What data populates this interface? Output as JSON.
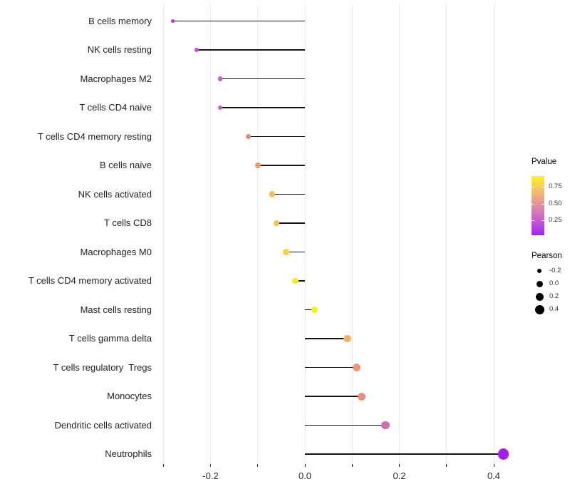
{
  "chart_data": {
    "type": "lollipop",
    "orientation": "horizontal",
    "title": "",
    "xlabel": "",
    "ylabel": "",
    "categories": [
      "B cells memory",
      "NK cells resting",
      "Macrophages M2",
      "T cells CD4 naive",
      "T cells CD4 memory resting",
      "B cells naive",
      "NK cells activated",
      "T cells CD8",
      "Macrophages M0",
      "T cells CD4 memory activated",
      "Mast cells resting",
      "T cells gamma delta",
      "T cells regulatory  Tregs",
      "Monocytes",
      "Dendritic cells activated",
      "Neutrophils"
    ],
    "values": [
      -0.28,
      -0.23,
      -0.18,
      -0.18,
      -0.12,
      -0.1,
      -0.07,
      -0.06,
      -0.04,
      -0.02,
      0.02,
      0.09,
      0.11,
      0.12,
      0.17,
      0.42
    ],
    "point_colors": [
      "#AE3BD1",
      "#BD4FCE",
      "#C75FC4",
      "#C75FC4",
      "#DB8A80",
      "#E69B6E",
      "#EEC156",
      "#EEC351",
      "#F2D841",
      "#F4E930",
      "#F6EF1D",
      "#ECB26C",
      "#E79B78",
      "#E59177",
      "#CF70AE",
      "#A320F0"
    ],
    "baseline": 0,
    "xlim": [
      -0.31,
      0.44
    ],
    "x_major_ticks": [
      -0.2,
      0.0,
      0.2,
      0.4
    ],
    "x_tick_labels": [
      "-0.2",
      "0.0",
      "0.2",
      "0.4"
    ],
    "x_gridlines": [
      -0.3,
      -0.2,
      -0.1,
      0.0,
      0.1,
      0.2,
      0.3,
      0.4
    ],
    "grid": "on",
    "stem_color": "#141414",
    "background": "#ffffff",
    "legend_position": "right"
  },
  "legend": {
    "pvalue": {
      "title": "Pvalue",
      "tick_labels": [
        "0.75",
        "0.50",
        "0.25"
      ],
      "gradient_colors": [
        "#FCF327",
        "#F4BE69",
        "#E08FA0",
        "#C55DD3",
        "#A023F0"
      ],
      "high_color": "#FFFF00",
      "low_color": "#A020F0"
    },
    "pearson": {
      "title": "Pearson",
      "items": [
        {
          "label": "-0.2",
          "diameter": 6.5
        },
        {
          "label": "0.0",
          "diameter": 9
        },
        {
          "label": "0.2",
          "diameter": 11
        },
        {
          "label": "0.4",
          "diameter": 13
        }
      ]
    }
  }
}
